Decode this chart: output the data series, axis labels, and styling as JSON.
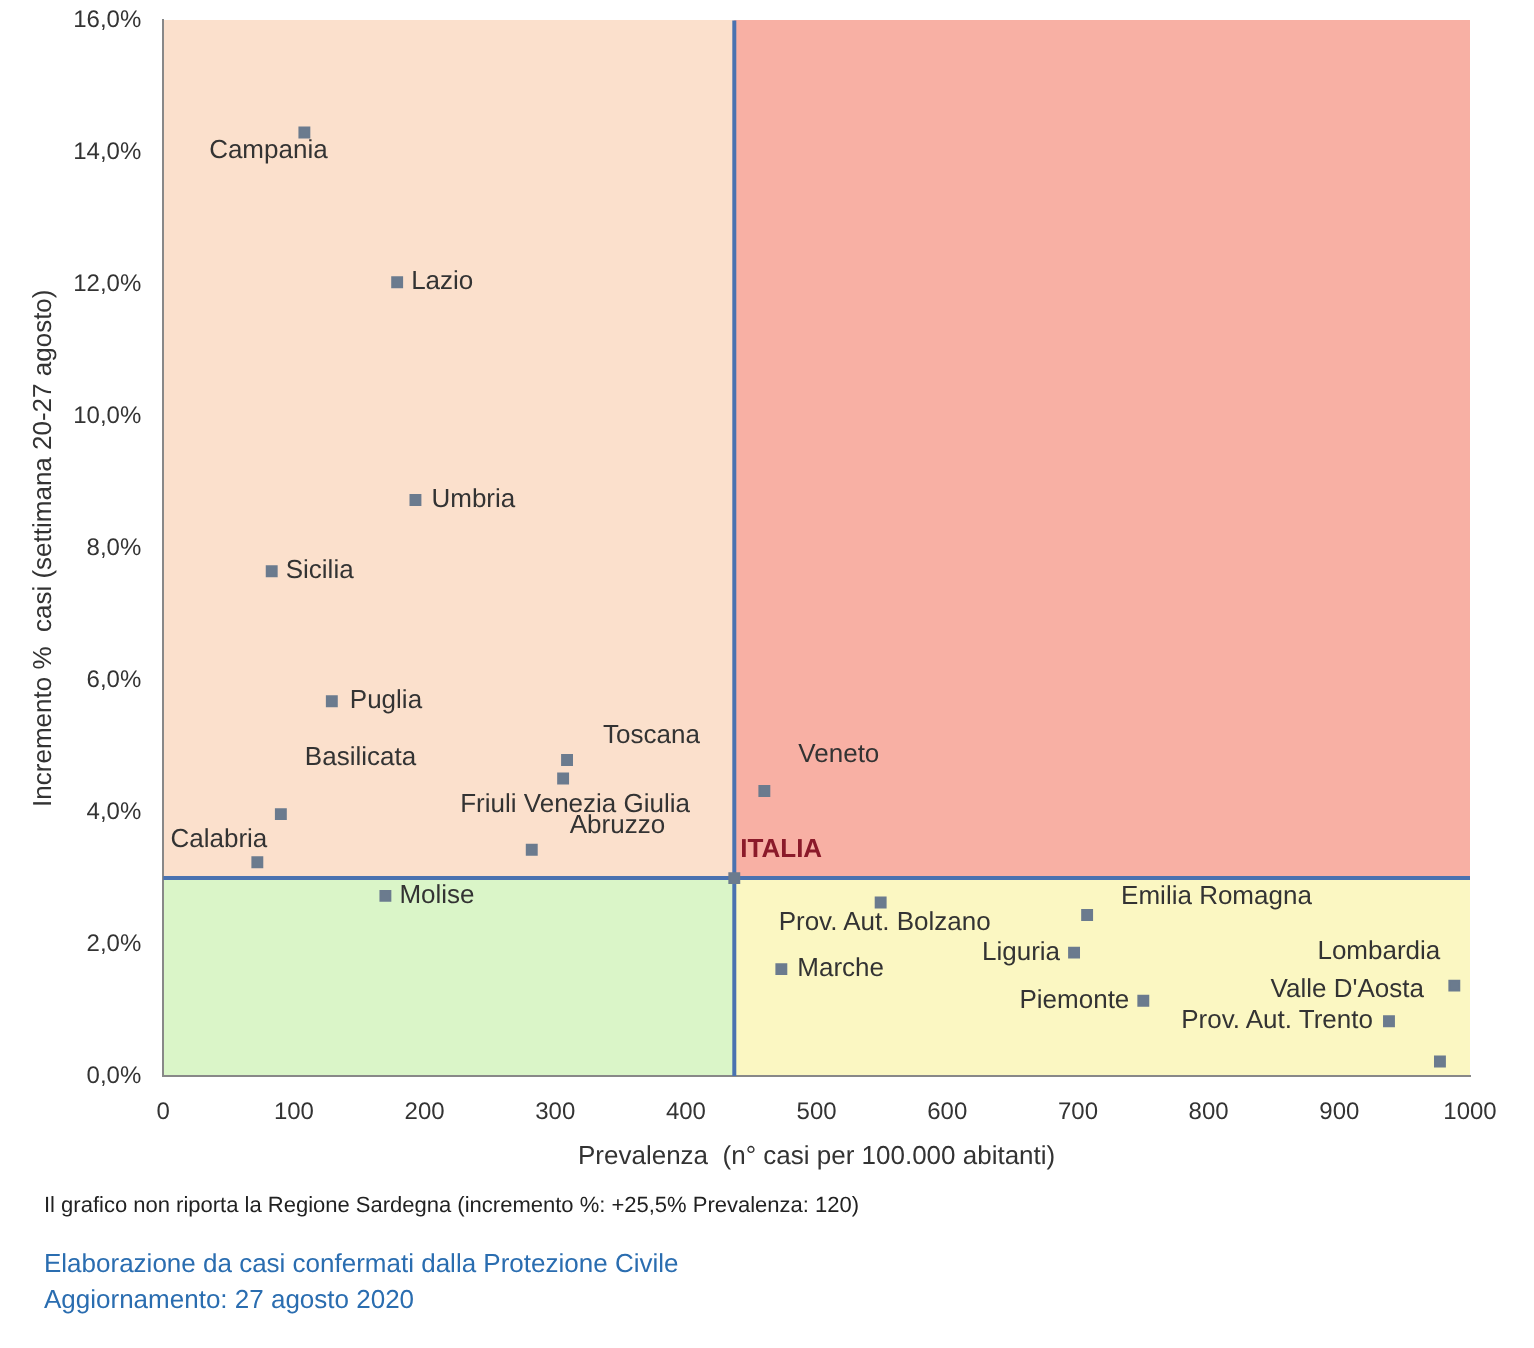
{
  "chart_data": {
    "type": "scatter",
    "xlabel": "Prevalenza  (n° casi per 100.000 abitanti)",
    "ylabel": "Incremento %  casi (settimana 20-27 agosto)",
    "x": [
      108,
      179,
      193,
      83,
      129,
      90,
      72,
      309,
      306,
      282,
      460,
      170,
      437,
      549,
      707,
      473,
      697,
      750,
      988,
      938,
      977
    ],
    "values": [
      14.3,
      12.03,
      8.73,
      7.65,
      5.68,
      3.97,
      3.24,
      4.79,
      4.51,
      3.43,
      4.32,
      2.73,
      3.0,
      2.63,
      2.44,
      1.62,
      1.87,
      1.14,
      1.37,
      0.83,
      0.22
    ],
    "color": "#6b7b8e",
    "marker": "square",
    "grid": false,
    "legend": false,
    "xlim": [
      0,
      1000
    ],
    "xticks": [
      0,
      100,
      200,
      300,
      400,
      500,
      600,
      700,
      800,
      900,
      1000
    ],
    "ylim": [
      0,
      16
    ],
    "yticks": [
      {
        "value": 0,
        "label": "0,0%"
      },
      {
        "value": 2,
        "label": "2,0%"
      },
      {
        "value": 4,
        "label": "4,0%"
      },
      {
        "value": 6,
        "label": "6,0%"
      },
      {
        "value": 8,
        "label": "8,0%"
      },
      {
        "value": 10,
        "label": "10,0%"
      },
      {
        "value": 12,
        "label": "12,0%"
      },
      {
        "value": 14,
        "label": "14,0%"
      },
      {
        "value": 16,
        "label": "16,0%"
      }
    ],
    "ref_lines": [
      {
        "axis": "x",
        "value": 437,
        "color": "#4a72b0"
      },
      {
        "axis": "y",
        "value": 3.0,
        "color": "#4a72b0"
      }
    ],
    "annotations": [
      {
        "text": "Campania",
        "x": 108,
        "y": 14.3
      },
      {
        "text": "Lazio",
        "x": 179,
        "y": 12.03
      },
      {
        "text": "Umbria",
        "x": 193,
        "y": 8.73
      },
      {
        "text": "Sicilia",
        "x": 83,
        "y": 7.65
      },
      {
        "text": "Puglia",
        "x": 129,
        "y": 5.68
      },
      {
        "text": "Basilicata",
        "x": 90,
        "y": 3.97
      },
      {
        "text": "Calabria",
        "x": 72,
        "y": 3.24
      },
      {
        "text": "Toscana",
        "x": 309,
        "y": 4.79
      },
      {
        "text": "Friuli Venezia Giulia",
        "x": 306,
        "y": 4.51
      },
      {
        "text": "Abruzzo",
        "x": 282,
        "y": 3.43
      },
      {
        "text": "Veneto",
        "x": 460,
        "y": 4.32
      },
      {
        "text": "Molise",
        "x": 170,
        "y": 2.73
      },
      {
        "text": "ITALIA",
        "x": 437,
        "y": 3.0
      },
      {
        "text": "Prov. Aut. Bolzano",
        "x": 549,
        "y": 2.63
      },
      {
        "text": "Emilia Romagna",
        "x": 707,
        "y": 2.44
      },
      {
        "text": "Marche",
        "x": 473,
        "y": 1.62
      },
      {
        "text": "Liguria",
        "x": 697,
        "y": 1.87
      },
      {
        "text": "Piemonte",
        "x": 750,
        "y": 1.14
      },
      {
        "text": "Lombardia",
        "x": 988,
        "y": 1.37
      },
      {
        "text": "Prov. Aut. Trento",
        "x": 938,
        "y": 0.83
      },
      {
        "text": "Valle D'Aosta",
        "x": 977,
        "y": 0.22
      },
      "Il grafico non riporta la Regione Sardegna (incremento %: +25,5% Prevalenza: 120)",
      "Elaborazione da casi confermati dalla Protezione Civile",
      "Aggiornamento: 27 agosto 2020"
    ]
  }
}
